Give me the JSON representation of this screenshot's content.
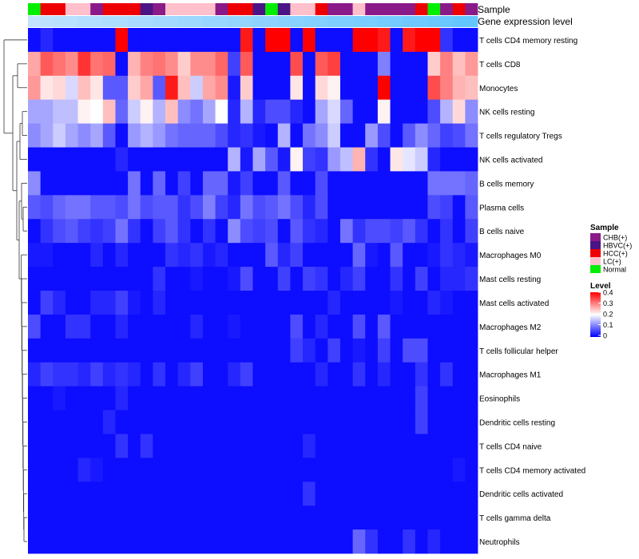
{
  "chart_data": {
    "type": "heatmap",
    "title": "",
    "annotation_labels": [
      "Sample",
      "Gene expression level"
    ],
    "rows": [
      "T cells CD4 memory resting",
      "T cells CD8",
      "Monocytes",
      "NK cells resting",
      "T cells regulatory  Tregs",
      "NK cells activated",
      "B cells memory",
      "Plasma cells",
      "B cells naive",
      "Macrophages M0",
      "Mast cells resting",
      "Mast cells activated",
      "Macrophages M2",
      "T cells follicular helper",
      "Macrophages M1",
      "Eosinophils",
      "Dendritic cells resting",
      "T cells CD4 naive",
      "T cells CD4 memory activated",
      "Dendritic cells activated",
      "T cells gamma delta",
      "Neutrophils"
    ],
    "sample_codes": [
      "N",
      "H",
      "H",
      "L",
      "L",
      "C",
      "H",
      "H",
      "H",
      "B",
      "C",
      "L",
      "L",
      "L",
      "L",
      "C",
      "H",
      "H",
      "B",
      "N",
      "B",
      "L",
      "L",
      "H",
      "C",
      "C",
      "L",
      "C",
      "C",
      "C",
      "C",
      "H",
      "N",
      "C",
      "H",
      "C"
    ],
    "samples": {
      "legend_title": "Sample",
      "groups": [
        {
          "code": "C",
          "name": "CHB(+)",
          "color": "#8B1A89"
        },
        {
          "code": "B",
          "name": "HBVC(+)",
          "color": "#4A1486"
        },
        {
          "code": "H",
          "name": "HCC(+)",
          "color": "#EE0000"
        },
        {
          "code": "L",
          "name": "LC(+)",
          "color": "#FFC0CB"
        },
        {
          "code": "N",
          "name": "Normal",
          "color": "#00EE00"
        }
      ]
    },
    "expression_level": [
      0.05,
      0.06,
      0.07,
      0.07,
      0.08,
      0.08,
      0.09,
      0.09,
      0.1,
      0.1,
      0.11,
      0.11,
      0.12,
      0.12,
      0.13,
      0.13,
      0.14,
      0.14,
      0.15,
      0.15,
      0.16,
      0.16,
      0.17,
      0.17,
      0.18,
      0.18,
      0.19,
      0.19,
      0.2,
      0.2,
      0.21,
      0.21,
      0.22,
      0.22,
      0.23,
      0.23
    ],
    "level_legend": {
      "title": "Level",
      "ticks": [
        "0",
        "0.1",
        "0.2",
        "0.3",
        "0.4"
      ],
      "min": 0,
      "max": 0.4
    },
    "values": [
      [
        0.01,
        0.03,
        0.01,
        0.01,
        0.01,
        0.01,
        0.01,
        0.4,
        0.01,
        0.01,
        0.01,
        0.01,
        0.01,
        0.01,
        0.01,
        0.01,
        0.01,
        0.38,
        0.01,
        0.4,
        0.4,
        0.01,
        0.4,
        0.01,
        0.01,
        0.01,
        0.4,
        0.4,
        0.38,
        0.01,
        0.38,
        0.4,
        0.4,
        0.04,
        0.01,
        0.01
      ],
      [
        0.27,
        0.33,
        0.31,
        0.29,
        0.36,
        0.31,
        0.32,
        0.01,
        0.26,
        0.3,
        0.31,
        0.29,
        0.24,
        0.29,
        0.29,
        0.32,
        0.05,
        0.33,
        0.01,
        0.01,
        0.01,
        0.34,
        0.01,
        0.33,
        0.35,
        0.01,
        0.01,
        0.01,
        0.1,
        0.01,
        0.01,
        0.01,
        0.24,
        0.3,
        0.25,
        0.28
      ],
      [
        0.28,
        0.22,
        0.23,
        0.17,
        0.25,
        0.22,
        0.07,
        0.07,
        0.24,
        0.27,
        0.07,
        0.38,
        0.25,
        0.16,
        0.27,
        0.29,
        0.02,
        0.24,
        0.01,
        0.01,
        0.01,
        0.22,
        0.01,
        0.23,
        0.21,
        0.01,
        0.01,
        0.01,
        0.4,
        0.01,
        0.01,
        0.01,
        0.34,
        0.3,
        0.26,
        0.25
      ],
      [
        0.13,
        0.13,
        0.15,
        0.15,
        0.21,
        0.2,
        0.25,
        0.08,
        0.16,
        0.21,
        0.14,
        0.25,
        0.11,
        0.09,
        0.13,
        0.2,
        0.03,
        0.14,
        0.03,
        0.06,
        0.06,
        0.03,
        0.01,
        0.13,
        0.17,
        0.08,
        0.01,
        0.01,
        0.21,
        0.01,
        0.01,
        0.01,
        0.06,
        0.14,
        0.23,
        0.11
      ],
      [
        0.11,
        0.13,
        0.16,
        0.13,
        0.11,
        0.13,
        0.07,
        0.01,
        0.12,
        0.14,
        0.12,
        0.09,
        0.08,
        0.08,
        0.08,
        0.06,
        0.03,
        0.04,
        0.02,
        0.01,
        0.14,
        0.01,
        0.09,
        0.11,
        0.16,
        0.01,
        0.01,
        0.12,
        0.06,
        0.01,
        0.07,
        0.11,
        0.08,
        0.05,
        0.06,
        0.09
      ],
      [
        0.01,
        0.01,
        0.01,
        0.01,
        0.01,
        0.01,
        0.01,
        0.03,
        0.01,
        0.01,
        0.01,
        0.01,
        0.01,
        0.01,
        0.01,
        0.01,
        0.14,
        0.02,
        0.13,
        0.07,
        0.02,
        0.21,
        0.05,
        0.04,
        0.12,
        0.15,
        0.26,
        0.04,
        0.01,
        0.22,
        0.18,
        0.16,
        0.03,
        0.01,
        0.01,
        0.01
      ],
      [
        0.11,
        0.01,
        0.01,
        0.01,
        0.01,
        0.01,
        0.01,
        0.01,
        0.09,
        0.01,
        0.08,
        0.01,
        0.05,
        0.01,
        0.08,
        0.08,
        0.02,
        0.05,
        0.01,
        0.01,
        0.07,
        0.01,
        0.01,
        0.06,
        0.01,
        0.01,
        0.01,
        0.01,
        0.01,
        0.01,
        0.01,
        0.01,
        0.09,
        0.09,
        0.09,
        0.08
      ],
      [
        0.07,
        0.06,
        0.08,
        0.09,
        0.09,
        0.07,
        0.07,
        0.06,
        0.09,
        0.06,
        0.07,
        0.07,
        0.04,
        0.06,
        0.1,
        0.05,
        0.03,
        0.09,
        0.06,
        0.07,
        0.09,
        0.06,
        0.03,
        0.06,
        0.01,
        0.01,
        0.01,
        0.01,
        0.01,
        0.01,
        0.01,
        0.01,
        0.06,
        0.05,
        0.01,
        0.07
      ],
      [
        0.01,
        0.04,
        0.06,
        0.07,
        0.05,
        0.04,
        0.05,
        0.09,
        0.04,
        0.01,
        0.05,
        0.07,
        0.04,
        0.01,
        0.04,
        0.01,
        0.11,
        0.06,
        0.05,
        0.06,
        0.01,
        0.07,
        0.04,
        0.03,
        0.01,
        0.09,
        0.04,
        0.06,
        0.06,
        0.05,
        0.07,
        0.04,
        0.01,
        0.04,
        0.01,
        0.05
      ],
      [
        0.02,
        0.02,
        0.01,
        0.01,
        0.01,
        0.03,
        0.01,
        0.03,
        0.01,
        0.01,
        0.01,
        0.04,
        0.03,
        0.04,
        0.02,
        0.03,
        0.01,
        0.01,
        0.01,
        0.07,
        0.03,
        0.05,
        0.01,
        0.01,
        0.01,
        0.01,
        0.08,
        0.02,
        0.01,
        0.07,
        0.01,
        0.01,
        0.02,
        0.04,
        0.03,
        0.02
      ],
      [
        0.01,
        0.01,
        0.01,
        0.01,
        0.01,
        0.01,
        0.01,
        0.01,
        0.01,
        0.01,
        0.04,
        0.01,
        0.01,
        0.02,
        0.01,
        0.01,
        0.02,
        0.06,
        0.01,
        0.01,
        0.05,
        0.01,
        0.05,
        0.04,
        0.01,
        0.03,
        0.05,
        0.01,
        0.01,
        0.04,
        0.01,
        0.05,
        0.01,
        0.03,
        0.03,
        0.04
      ],
      [
        0.01,
        0.05,
        0.03,
        0.01,
        0.01,
        0.03,
        0.03,
        0.05,
        0.02,
        0.01,
        0.03,
        0.01,
        0.01,
        0.01,
        0.01,
        0.01,
        0.01,
        0.01,
        0.01,
        0.01,
        0.01,
        0.01,
        0.01,
        0.01,
        0.03,
        0.01,
        0.01,
        0.01,
        0.01,
        0.02,
        0.01,
        0.01,
        0.03,
        0.02,
        0.01,
        0.01
      ],
      [
        0.06,
        0.01,
        0.01,
        0.04,
        0.04,
        0.01,
        0.01,
        0.03,
        0.01,
        0.01,
        0.01,
        0.01,
        0.01,
        0.03,
        0.01,
        0.01,
        0.02,
        0.01,
        0.01,
        0.01,
        0.01,
        0.06,
        0.01,
        0.03,
        0.01,
        0.01,
        0.06,
        0.01,
        0.07,
        0.01,
        0.01,
        0.01,
        0.01,
        0.01,
        0.01,
        0.01
      ],
      [
        0.01,
        0.01,
        0.01,
        0.01,
        0.01,
        0.01,
        0.01,
        0.01,
        0.01,
        0.01,
        0.01,
        0.01,
        0.01,
        0.01,
        0.01,
        0.01,
        0.01,
        0.01,
        0.01,
        0.01,
        0.01,
        0.05,
        0.03,
        0.01,
        0.05,
        0.01,
        0.02,
        0.01,
        0.05,
        0.01,
        0.06,
        0.06,
        0.01,
        0.01,
        0.01,
        0.01
      ],
      [
        0.03,
        0.05,
        0.04,
        0.04,
        0.03,
        0.05,
        0.03,
        0.04,
        0.03,
        0.01,
        0.04,
        0.01,
        0.03,
        0.05,
        0.01,
        0.01,
        0.03,
        0.05,
        0.01,
        0.01,
        0.01,
        0.01,
        0.01,
        0.03,
        0.01,
        0.01,
        0.04,
        0.01,
        0.03,
        0.01,
        0.01,
        0.04,
        0.01,
        0.04,
        0.01,
        0.01
      ],
      [
        0.01,
        0.01,
        0.02,
        0.01,
        0.01,
        0.01,
        0.01,
        0.03,
        0.01,
        0.01,
        0.01,
        0.01,
        0.01,
        0.01,
        0.01,
        0.01,
        0.01,
        0.01,
        0.01,
        0.01,
        0.01,
        0.01,
        0.01,
        0.01,
        0.01,
        0.01,
        0.01,
        0.01,
        0.01,
        0.01,
        0.01,
        0.05,
        0.01,
        0.01,
        0.01,
        0.01
      ],
      [
        0.01,
        0.01,
        0.01,
        0.01,
        0.01,
        0.01,
        0.03,
        0.01,
        0.01,
        0.01,
        0.01,
        0.01,
        0.01,
        0.01,
        0.01,
        0.01,
        0.01,
        0.01,
        0.01,
        0.01,
        0.01,
        0.01,
        0.01,
        0.01,
        0.01,
        0.01,
        0.01,
        0.01,
        0.01,
        0.01,
        0.01,
        0.05,
        0.01,
        0.01,
        0.01,
        0.01
      ],
      [
        0.01,
        0.01,
        0.01,
        0.01,
        0.01,
        0.01,
        0.01,
        0.04,
        0.01,
        0.04,
        0.01,
        0.01,
        0.01,
        0.01,
        0.01,
        0.01,
        0.01,
        0.01,
        0.01,
        0.01,
        0.01,
        0.01,
        0.03,
        0.01,
        0.01,
        0.01,
        0.01,
        0.01,
        0.01,
        0.01,
        0.01,
        0.01,
        0.01,
        0.01,
        0.01,
        0.01
      ],
      [
        0.01,
        0.01,
        0.01,
        0.01,
        0.03,
        0.02,
        0.01,
        0.01,
        0.01,
        0.01,
        0.01,
        0.01,
        0.01,
        0.01,
        0.01,
        0.01,
        0.01,
        0.01,
        0.01,
        0.01,
        0.01,
        0.01,
        0.01,
        0.01,
        0.01,
        0.01,
        0.01,
        0.01,
        0.01,
        0.01,
        0.01,
        0.01,
        0.01,
        0.01,
        0.02,
        0.01
      ],
      [
        0.01,
        0.01,
        0.01,
        0.01,
        0.01,
        0.01,
        0.01,
        0.01,
        0.01,
        0.01,
        0.01,
        0.01,
        0.01,
        0.01,
        0.01,
        0.01,
        0.01,
        0.01,
        0.01,
        0.01,
        0.01,
        0.01,
        0.04,
        0.01,
        0.01,
        0.01,
        0.01,
        0.01,
        0.01,
        0.01,
        0.01,
        0.01,
        0.01,
        0.01,
        0.01,
        0.01
      ],
      [
        0.01,
        0.01,
        0.01,
        0.01,
        0.01,
        0.01,
        0.01,
        0.01,
        0.01,
        0.01,
        0.01,
        0.01,
        0.01,
        0.01,
        0.01,
        0.01,
        0.01,
        0.01,
        0.01,
        0.01,
        0.01,
        0.01,
        0.01,
        0.01,
        0.01,
        0.01,
        0.01,
        0.01,
        0.01,
        0.01,
        0.01,
        0.01,
        0.01,
        0.01,
        0.01,
        0.01
      ],
      [
        0.01,
        0.01,
        0.01,
        0.01,
        0.01,
        0.01,
        0.01,
        0.01,
        0.01,
        0.01,
        0.01,
        0.01,
        0.01,
        0.01,
        0.01,
        0.01,
        0.01,
        0.01,
        0.01,
        0.01,
        0.01,
        0.01,
        0.01,
        0.01,
        0.01,
        0.01,
        0.08,
        0.04,
        0.01,
        0.01,
        0.04,
        0.01,
        0.03,
        0.01,
        0.01,
        0.01
      ]
    ]
  }
}
